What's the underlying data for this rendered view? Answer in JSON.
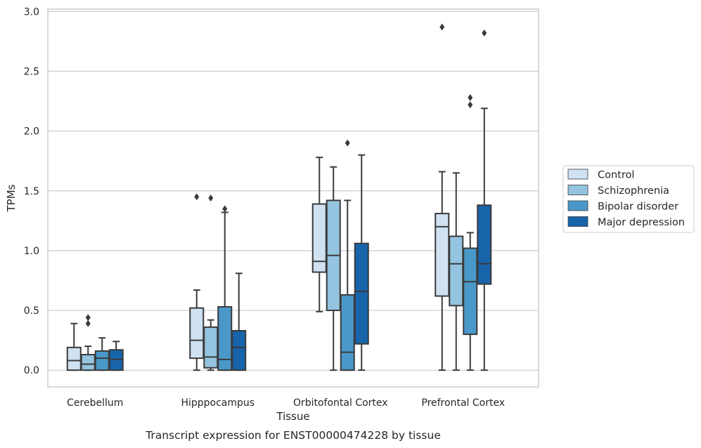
{
  "chart_data": {
    "type": "box",
    "caption": "Transcript expression for ENST00000474228 by tissue",
    "xlabel": "Tissue",
    "ylabel": "TPMs",
    "ylim": [
      -0.14,
      3.02
    ],
    "yticks": [
      "0.0",
      "0.5",
      "1.0",
      "1.5",
      "2.0",
      "2.5",
      "3.0"
    ],
    "ytick_values": [
      0.0,
      0.5,
      1.0,
      1.5,
      2.0,
      2.5,
      3.0
    ],
    "grid": true,
    "legend_position": "right",
    "categories": [
      "Cerebellum",
      "Hipppocampus",
      "Orbitofontal Cortex",
      "Prefrontal Cortex"
    ],
    "series": [
      {
        "name": "Control",
        "color": "#d0e1f2",
        "boxes": [
          {
            "whislo": 0.0,
            "q1": 0.0,
            "med": 0.08,
            "q3": 0.19,
            "whishi": 0.39,
            "fliers": []
          },
          {
            "whislo": 0.0,
            "q1": 0.1,
            "med": 0.25,
            "q3": 0.52,
            "whishi": 0.67,
            "fliers": [
              1.45
            ]
          },
          {
            "whislo": 0.49,
            "q1": 0.82,
            "med": 0.91,
            "q3": 1.39,
            "whishi": 1.78,
            "fliers": []
          },
          {
            "whislo": 0.0,
            "q1": 0.62,
            "med": 1.2,
            "q3": 1.31,
            "whishi": 1.66,
            "fliers": [
              2.87
            ]
          }
        ]
      },
      {
        "name": "Schizophrenia",
        "color": "#94c4df",
        "boxes": [
          {
            "whislo": 0.0,
            "q1": 0.0,
            "med": 0.05,
            "q3": 0.13,
            "whishi": 0.2,
            "fliers": [
              0.39,
              0.44
            ]
          },
          {
            "whislo": 0.0,
            "q1": 0.02,
            "med": 0.11,
            "q3": 0.36,
            "whishi": 0.42,
            "fliers": [
              1.44
            ]
          },
          {
            "whislo": 0.0,
            "q1": 0.5,
            "med": 0.96,
            "q3": 1.42,
            "whishi": 1.7,
            "fliers": []
          },
          {
            "whislo": 0.0,
            "q1": 0.54,
            "med": 0.89,
            "q3": 1.12,
            "whishi": 1.65,
            "fliers": []
          }
        ]
      },
      {
        "name": "Bipolar disorder",
        "color": "#4a98c9",
        "boxes": [
          {
            "whislo": 0.0,
            "q1": 0.0,
            "med": 0.1,
            "q3": 0.16,
            "whishi": 0.27,
            "fliers": []
          },
          {
            "whislo": 0.0,
            "q1": 0.0,
            "med": 0.09,
            "q3": 0.53,
            "whishi": 1.32,
            "fliers": [
              1.35
            ]
          },
          {
            "whislo": 0.0,
            "q1": 0.0,
            "med": 0.15,
            "q3": 0.63,
            "whishi": 1.42,
            "fliers": [
              1.9
            ]
          },
          {
            "whislo": 0.0,
            "q1": 0.3,
            "med": 0.74,
            "q3": 1.02,
            "whishi": 1.15,
            "fliers": [
              2.22,
              2.28
            ]
          }
        ]
      },
      {
        "name": "Major depression",
        "color": "#1764ab",
        "boxes": [
          {
            "whislo": 0.0,
            "q1": 0.0,
            "med": 0.09,
            "q3": 0.17,
            "whishi": 0.24,
            "fliers": []
          },
          {
            "whislo": 0.0,
            "q1": 0.0,
            "med": 0.19,
            "q3": 0.33,
            "whishi": 0.81,
            "fliers": []
          },
          {
            "whislo": 0.0,
            "q1": 0.22,
            "med": 0.66,
            "q3": 1.06,
            "whishi": 1.8,
            "fliers": []
          },
          {
            "whislo": 0.0,
            "q1": 0.72,
            "med": 0.89,
            "q3": 1.38,
            "whishi": 2.19,
            "fliers": [
              2.82
            ]
          }
        ]
      }
    ]
  }
}
